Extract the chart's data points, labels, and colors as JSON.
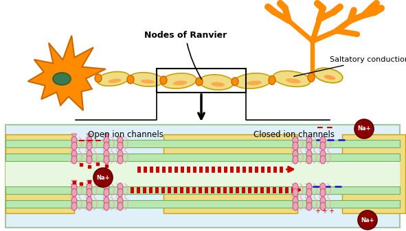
{
  "fig_width": 5.91,
  "fig_height": 3.37,
  "dpi": 100,
  "bg_color": "#ffffff",
  "orange": "#FF8C00",
  "orange_dark": "#CC6600",
  "myelin_fill": "#F0DC82",
  "myelin_edge": "#C8A000",
  "node_fill": "#FF8C00",
  "nucleus_fill": "#3A7A50",
  "nucleus_edge": "#2A5A38",
  "membrane_fill": "#B8E8B0",
  "membrane_edge": "#70B060",
  "myelin_panel_fill": "#F0DC82",
  "myelin_panel_edge": "#C8A000",
  "panel_bg": "#DFF0F8",
  "panel_edge": "#A0C8A0",
  "signal_red": "#CC0000",
  "blue_dash": "#2222CC",
  "na_fill": "#8B0000",
  "na_text": "#ffffff",
  "channel_fill": "#F0A0B8",
  "channel_edge": "#C06080",
  "pink_line": "#F0A0B8",
  "title_nodes": "Nodes of Ranvier",
  "title_saltatory": "Saltatory conduction",
  "label_open": "Open ion channels",
  "label_closed": "Closed ion channels",
  "label_na": "Na+"
}
